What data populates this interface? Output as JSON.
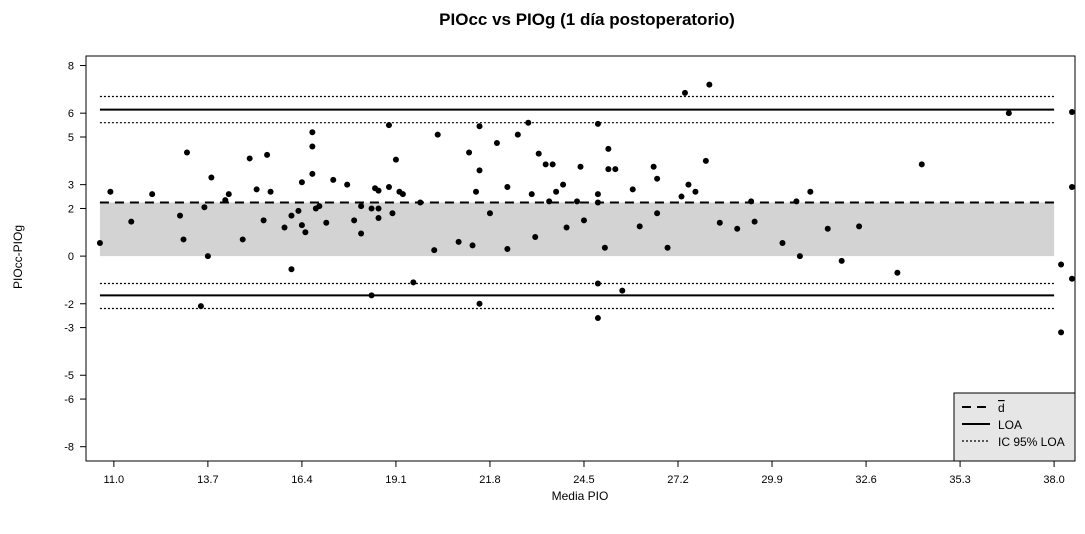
{
  "chart_data": {
    "type": "scatter",
    "title": "PIOcc vs PIOg (1 día postoperatorio)",
    "xlabel": "Media PIO",
    "ylabel": "PIOcc-PIOg",
    "xlim": [
      10.2,
      38.6
    ],
    "ylim": [
      -8.6,
      8.4
    ],
    "x_ticks": [
      "11.0",
      "13.7",
      "16.4",
      "19.1",
      "21.8",
      "24.5",
      "27.2",
      "29.9",
      "32.6",
      "35.3",
      "38.0"
    ],
    "y_ticks": [
      "8",
      "6",
      "5",
      "3",
      "2",
      "0",
      "-2",
      "-3",
      "-5",
      "-6",
      "-8"
    ],
    "reference_lines": {
      "mean_diff": 2.25,
      "loa_upper": 6.15,
      "loa_lower": -1.65,
      "ci_loa_upper": [
        6.7,
        5.6
      ],
      "ci_loa_lower": [
        -1.15,
        -2.2
      ]
    },
    "shaded_band": [
      0,
      2.25
    ],
    "shade_color": "#d3d3d3",
    "legend": {
      "position": "bottom-right",
      "entries": [
        {
          "label": "d",
          "style": "dashed",
          "overline": true
        },
        {
          "label": "LOA",
          "style": "solid"
        },
        {
          "label": "IC 95% LOA",
          "style": "dotted"
        }
      ]
    },
    "points": [
      [
        10.6,
        0.55
      ],
      [
        10.9,
        2.7
      ],
      [
        11.5,
        1.45
      ],
      [
        12.1,
        2.6
      ],
      [
        12.9,
        1.7
      ],
      [
        13.0,
        0.7
      ],
      [
        13.1,
        4.35
      ],
      [
        13.6,
        2.05
      ],
      [
        13.7,
        0.0
      ],
      [
        13.8,
        3.3
      ],
      [
        13.5,
        -2.1
      ],
      [
        14.2,
        2.35
      ],
      [
        14.3,
        2.6
      ],
      [
        14.7,
        0.7
      ],
      [
        14.9,
        4.1
      ],
      [
        15.1,
        2.8
      ],
      [
        15.3,
        1.5
      ],
      [
        15.4,
        4.25
      ],
      [
        15.5,
        2.7
      ],
      [
        15.9,
        1.2
      ],
      [
        16.1,
        1.7
      ],
      [
        16.3,
        1.9
      ],
      [
        16.4,
        3.1
      ],
      [
        16.5,
        1.0
      ],
      [
        16.4,
        1.3
      ],
      [
        16.7,
        3.45
      ],
      [
        16.7,
        4.6
      ],
      [
        16.8,
        2.0
      ],
      [
        16.9,
        2.1
      ],
      [
        16.7,
        5.2
      ],
      [
        16.1,
        -0.55
      ],
      [
        17.3,
        3.2
      ],
      [
        17.1,
        1.4
      ],
      [
        17.7,
        3.0
      ],
      [
        17.9,
        1.5
      ],
      [
        18.1,
        2.1
      ],
      [
        18.1,
        0.95
      ],
      [
        18.4,
        2.0
      ],
      [
        18.5,
        2.85
      ],
      [
        18.6,
        2.75
      ],
      [
        18.6,
        1.6
      ],
      [
        18.6,
        2.0
      ],
      [
        18.4,
        -1.65
      ],
      [
        18.9,
        2.9
      ],
      [
        19.0,
        1.8
      ],
      [
        19.1,
        4.05
      ],
      [
        19.2,
        2.7
      ],
      [
        19.3,
        2.6
      ],
      [
        18.9,
        5.5
      ],
      [
        19.6,
        -1.1
      ],
      [
        19.8,
        2.25
      ],
      [
        20.2,
        0.25
      ],
      [
        20.3,
        5.1
      ],
      [
        20.9,
        0.6
      ],
      [
        21.2,
        4.35
      ],
      [
        21.3,
        0.45
      ],
      [
        21.4,
        2.7
      ],
      [
        21.5,
        3.6
      ],
      [
        21.5,
        5.45
      ],
      [
        21.8,
        1.8
      ],
      [
        22.0,
        4.75
      ],
      [
        21.5,
        -2.0
      ],
      [
        22.3,
        0.3
      ],
      [
        22.3,
        2.9
      ],
      [
        22.6,
        5.1
      ],
      [
        22.9,
        5.6
      ],
      [
        23.0,
        2.6
      ],
      [
        23.1,
        0.8
      ],
      [
        23.2,
        4.3
      ],
      [
        23.4,
        3.85
      ],
      [
        23.6,
        3.85
      ],
      [
        23.5,
        2.3
      ],
      [
        23.7,
        2.7
      ],
      [
        23.9,
        3.0
      ],
      [
        24.0,
        1.2
      ],
      [
        24.3,
        2.3
      ],
      [
        24.4,
        3.75
      ],
      [
        24.5,
        1.5
      ],
      [
        24.9,
        2.6
      ],
      [
        24.9,
        2.25
      ],
      [
        24.9,
        5.55
      ],
      [
        24.9,
        -1.15
      ],
      [
        24.9,
        -2.6
      ],
      [
        25.1,
        0.35
      ],
      [
        25.2,
        4.5
      ],
      [
        25.2,
        3.65
      ],
      [
        25.4,
        3.65
      ],
      [
        25.6,
        -1.45
      ],
      [
        25.9,
        2.8
      ],
      [
        26.1,
        1.25
      ],
      [
        26.5,
        3.75
      ],
      [
        26.6,
        1.8
      ],
      [
        26.6,
        3.25
      ],
      [
        26.9,
        0.35
      ],
      [
        27.3,
        2.5
      ],
      [
        27.5,
        3.0
      ],
      [
        27.4,
        6.85
      ],
      [
        27.7,
        2.7
      ],
      [
        28.0,
        4.0
      ],
      [
        28.1,
        7.2
      ],
      [
        28.4,
        1.4
      ],
      [
        28.9,
        1.15
      ],
      [
        29.3,
        2.3
      ],
      [
        29.4,
        1.45
      ],
      [
        30.2,
        0.55
      ],
      [
        30.6,
        2.3
      ],
      [
        30.7,
        0.0
      ],
      [
        31.0,
        2.7
      ],
      [
        31.5,
        1.15
      ],
      [
        31.9,
        -0.2
      ],
      [
        32.4,
        1.25
      ],
      [
        33.5,
        -0.7
      ],
      [
        34.2,
        3.85
      ],
      [
        36.7,
        6.0
      ],
      [
        38.7,
        6.05
      ],
      [
        38.2,
        -0.35
      ],
      [
        38.9,
        -0.95
      ],
      [
        38.2,
        -3.2
      ],
      [
        39.4,
        2.9
      ]
    ]
  }
}
